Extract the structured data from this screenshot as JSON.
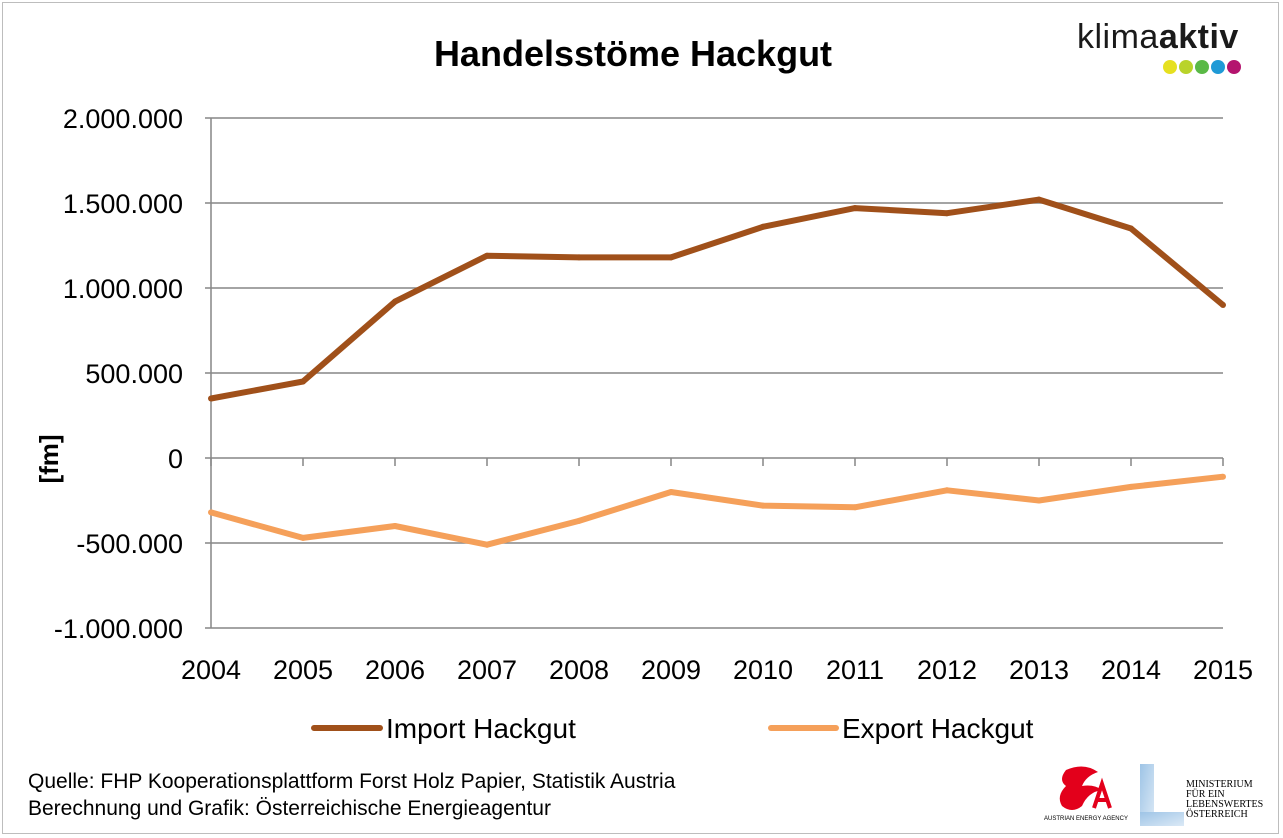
{
  "chart_data": {
    "type": "line",
    "title": "Handelsstöme Hackgut",
    "ylabel": "[fm]",
    "xlabel": "",
    "x": [
      "2004",
      "2005",
      "2006",
      "2007",
      "2008",
      "2009",
      "2010",
      "2011",
      "2012",
      "2013",
      "2014",
      "2015"
    ],
    "ylim": [
      -1000000,
      2000000
    ],
    "yticks": [
      2000000,
      1500000,
      1000000,
      500000,
      0,
      -500000,
      -1000000
    ],
    "ytick_labels": [
      "2.000.000",
      "1.500.000",
      "1.000.000",
      "500.000",
      "0",
      "-500.000",
      "-1.000.000"
    ],
    "grid": true,
    "legend_position": "bottom",
    "series": [
      {
        "name": "Import Hackgut",
        "color": "#a0501a",
        "values": [
          350000,
          450000,
          920000,
          1190000,
          1180000,
          1180000,
          1360000,
          1470000,
          1440000,
          1520000,
          1350000,
          900000
        ]
      },
      {
        "name": "Export Hackgut",
        "color": "#f5a05a",
        "values": [
          -320000,
          -470000,
          -400000,
          -510000,
          -370000,
          -200000,
          -280000,
          -290000,
          -190000,
          -250000,
          -170000,
          -110000
        ]
      }
    ]
  },
  "source": {
    "line1": "Quelle: FHP Kooperationsplattform Forst Holz Papier,  Statistik Austria",
    "line2": "Berechnung und Grafik: Österreichische  Energieagentur"
  },
  "logos": {
    "klimaaktiv": {
      "text_light": "klima",
      "text_bold": "aktiv",
      "dot_colors": [
        "#e6e020",
        "#b9d32a",
        "#5ab946",
        "#1f9ad6",
        "#b4146e"
      ]
    },
    "energy_agency": {
      "caption": "AUSTRIAN ENERGY AGENCY",
      "colors": [
        "#e3001b"
      ]
    },
    "ministerium": {
      "lines": [
        "MINISTERIUM",
        "FÜR EIN",
        "LEBENSWERTES",
        "ÖSTERREICH"
      ]
    }
  }
}
